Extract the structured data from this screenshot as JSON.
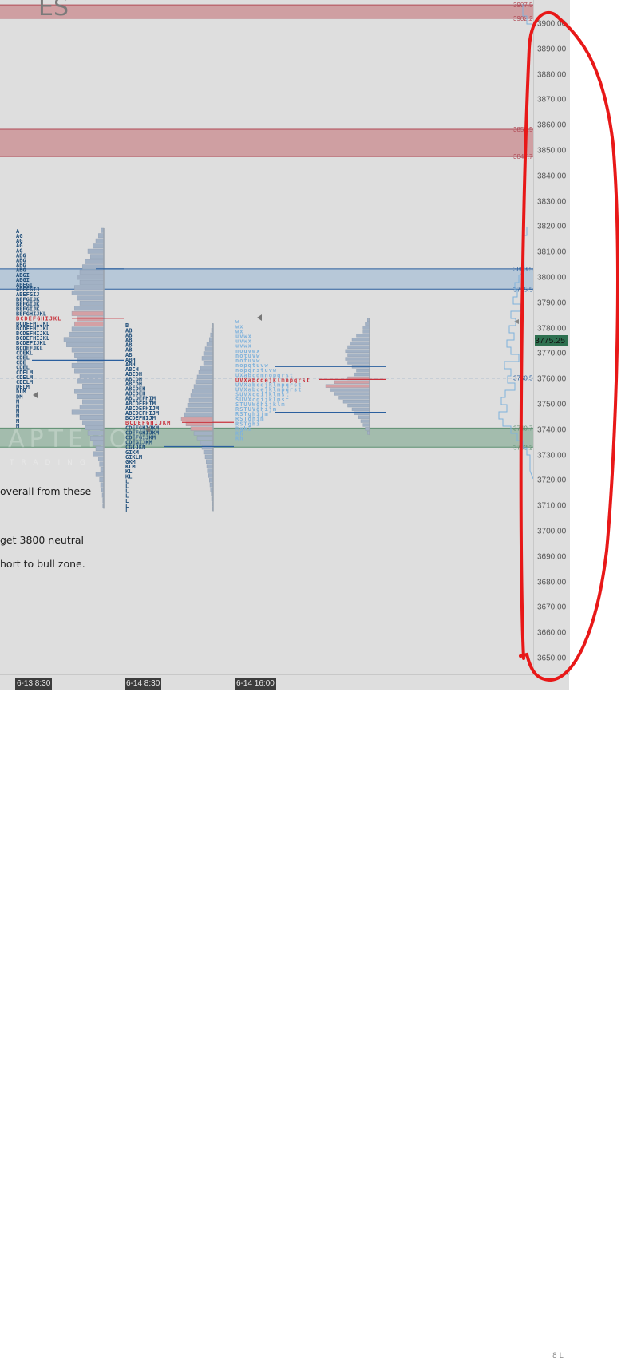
{
  "symbol": "ES",
  "watermark": "APTEROS TRADING",
  "price_axis": {
    "labels": [
      "3900.00",
      "3890.00",
      "3880.00",
      "3870.00",
      "3860.00",
      "3850.00",
      "3840.00",
      "3830.00",
      "3820.00",
      "3810.00",
      "3800.00",
      "3790.00",
      "3780.00",
      "3770.00",
      "3760.00",
      "3750.00",
      "3740.00",
      "3730.00",
      "3720.00",
      "3710.00",
      "3700.00",
      "3690.00",
      "3680.00",
      "3670.00",
      "3660.00",
      "3650.00"
    ],
    "current_price": "3775.25",
    "current_price_color": "#2e7050"
  },
  "time_axis": [
    "6-13  8:30",
    "6-14  8:30",
    "6-14  16:00"
  ],
  "corner_label": "8 L",
  "zones": [
    {
      "kind": "resistance",
      "top": 3907.5,
      "bottom": 3902.25,
      "top_label": "3907.50",
      "bottom_label": "3902.25",
      "color": "#c98a8e"
    },
    {
      "kind": "resistance",
      "top": 3858.5,
      "bottom": 3847.75,
      "top_label": "3858.50",
      "bottom_label": "3847.75",
      "color": "#c98a8e"
    },
    {
      "kind": "neutral",
      "top": 3803.5,
      "bottom": 3795.5,
      "top_label": "3803.50",
      "bottom_label": "3795.50",
      "color": "#a9c0d6"
    },
    {
      "kind": "support",
      "top": 3740.75,
      "bottom": 3733.25,
      "top_label": "3740.75",
      "bottom_label": "3733.25",
      "color": "#8fb09c"
    }
  ],
  "dashed_level": {
    "price": 3760.5,
    "label": "3760.50"
  },
  "notes": [
    "overall from these",
    "get 3800 neutral",
    "hort to bull zone."
  ],
  "profiles": [
    {
      "top_price": 3819.2,
      "poc_index": 18,
      "tpo": [
        "A",
        "AG",
        "AG",
        "AG",
        "AG",
        "ABG",
        "ABG",
        "ABG",
        "ABG",
        "ABGI",
        "ABGI",
        "ABEGI",
        "ABEFGIJ",
        "ABEFGIJ",
        "BEFGIJK",
        "BEFGIJK",
        "BEFGIJK",
        "BEFGHIJKL",
        "BCDEFGHIJKL",
        "BCDEFHIJKL",
        "BCDEFHIJKL",
        "BCDEFHIJKL",
        "BCDEFHIJKL",
        "BCDEFIJKL",
        "BCDEFJKL",
        "CDEKL",
        "CDEL",
        "CDE",
        "CDEL",
        "CDELM",
        "CDELM",
        "CDELM",
        "DELM",
        "DLM",
        "DM",
        "M",
        "M",
        "M",
        "M",
        "M",
        "M"
      ],
      "hist_top": 3819.5,
      "hist_bottom": 3709,
      "volume": [
        5,
        10,
        15,
        20,
        30,
        25,
        35,
        40,
        45,
        50,
        45,
        55,
        60,
        50,
        45,
        55,
        60,
        50,
        55,
        60,
        65,
        75,
        70,
        60,
        55,
        50,
        60,
        55,
        45,
        50,
        40,
        55,
        50,
        40,
        45,
        60,
        45,
        40,
        35,
        30,
        25,
        20,
        15,
        20,
        10,
        8,
        6,
        15,
        8,
        6,
        4,
        3,
        2,
        2
      ]
    },
    {
      "top_price": 3782,
      "poc_index": 20,
      "tpo": [
        "B",
        "AB",
        "AB",
        "AB",
        "AB",
        "AB",
        "AB",
        "ABH",
        "ABH",
        "ABCH",
        "ABCDH",
        "ABCDH",
        "ABCDH",
        "ABCDEH",
        "ABCDEH",
        "ABCDEFHIM",
        "ABCDEFHIM",
        "ABCDEFHIJM",
        "ABCDEFHIJM",
        "BCDEFHIJM",
        "BCDEFGHIJKM",
        "CDEFGHIJKM",
        "CDEFGHIJKM",
        "CDEFGIJKM",
        "CDEGIJKM",
        "CGIJKM",
        "GIKM",
        "GIKLM",
        "GKM",
        "KLM",
        "KL",
        "KL",
        "L",
        "L",
        "L",
        "L",
        "L",
        "L",
        "L"
      ],
      "hist_top": 3782,
      "hist_bottom": 3708,
      "volume": [
        3,
        5,
        8,
        12,
        20,
        25,
        30,
        35,
        30,
        40,
        45,
        50,
        55,
        60,
        65,
        70,
        75,
        80,
        85,
        90,
        100,
        85,
        70,
        60,
        50,
        40,
        35,
        30,
        25,
        22,
        20,
        18,
        15,
        12,
        10,
        8,
        6,
        5,
        4,
        3
      ]
    },
    {
      "top_price": 3783.6,
      "poc_index": 12,
      "tpo": [
        "w",
        "wx",
        "wx",
        "uvwx",
        "uvwx",
        "uvwx",
        "nouvwx",
        "notuvw",
        "notuvw",
        "nopqtuvw",
        "nopqrstuvw",
        "UXabcdmnopqrst",
        "UVXabcdejklmnpqrst",
        "UVXabcejklmpqrst",
        "UVXabcejklmpqrst",
        "SUVXcgijklmst",
        "SUVXcgijklmst",
        "STUVWghijklm",
        "RSTUVghijm",
        "RSTghijm",
        "RSTghim",
        "RSTghi",
        "Rghi",
        "Rh",
        "Rh"
      ],
      "hist_top": 3784,
      "hist_bottom": 3738,
      "volume": [
        5,
        10,
        15,
        15,
        30,
        40,
        45,
        50,
        55,
        50,
        55,
        50,
        40,
        30,
        35,
        50,
        80,
        100,
        90,
        80,
        70,
        60,
        50,
        40,
        35,
        25,
        20,
        15,
        10,
        5
      ]
    }
  ],
  "colors": {
    "tpo": "#1f4e7a",
    "tpo_light": "#7fb2dc",
    "poc": "#c8323c",
    "histogram": "#a2b1c4",
    "va_line": "#2a5f9e",
    "annotation": "#e81818"
  }
}
